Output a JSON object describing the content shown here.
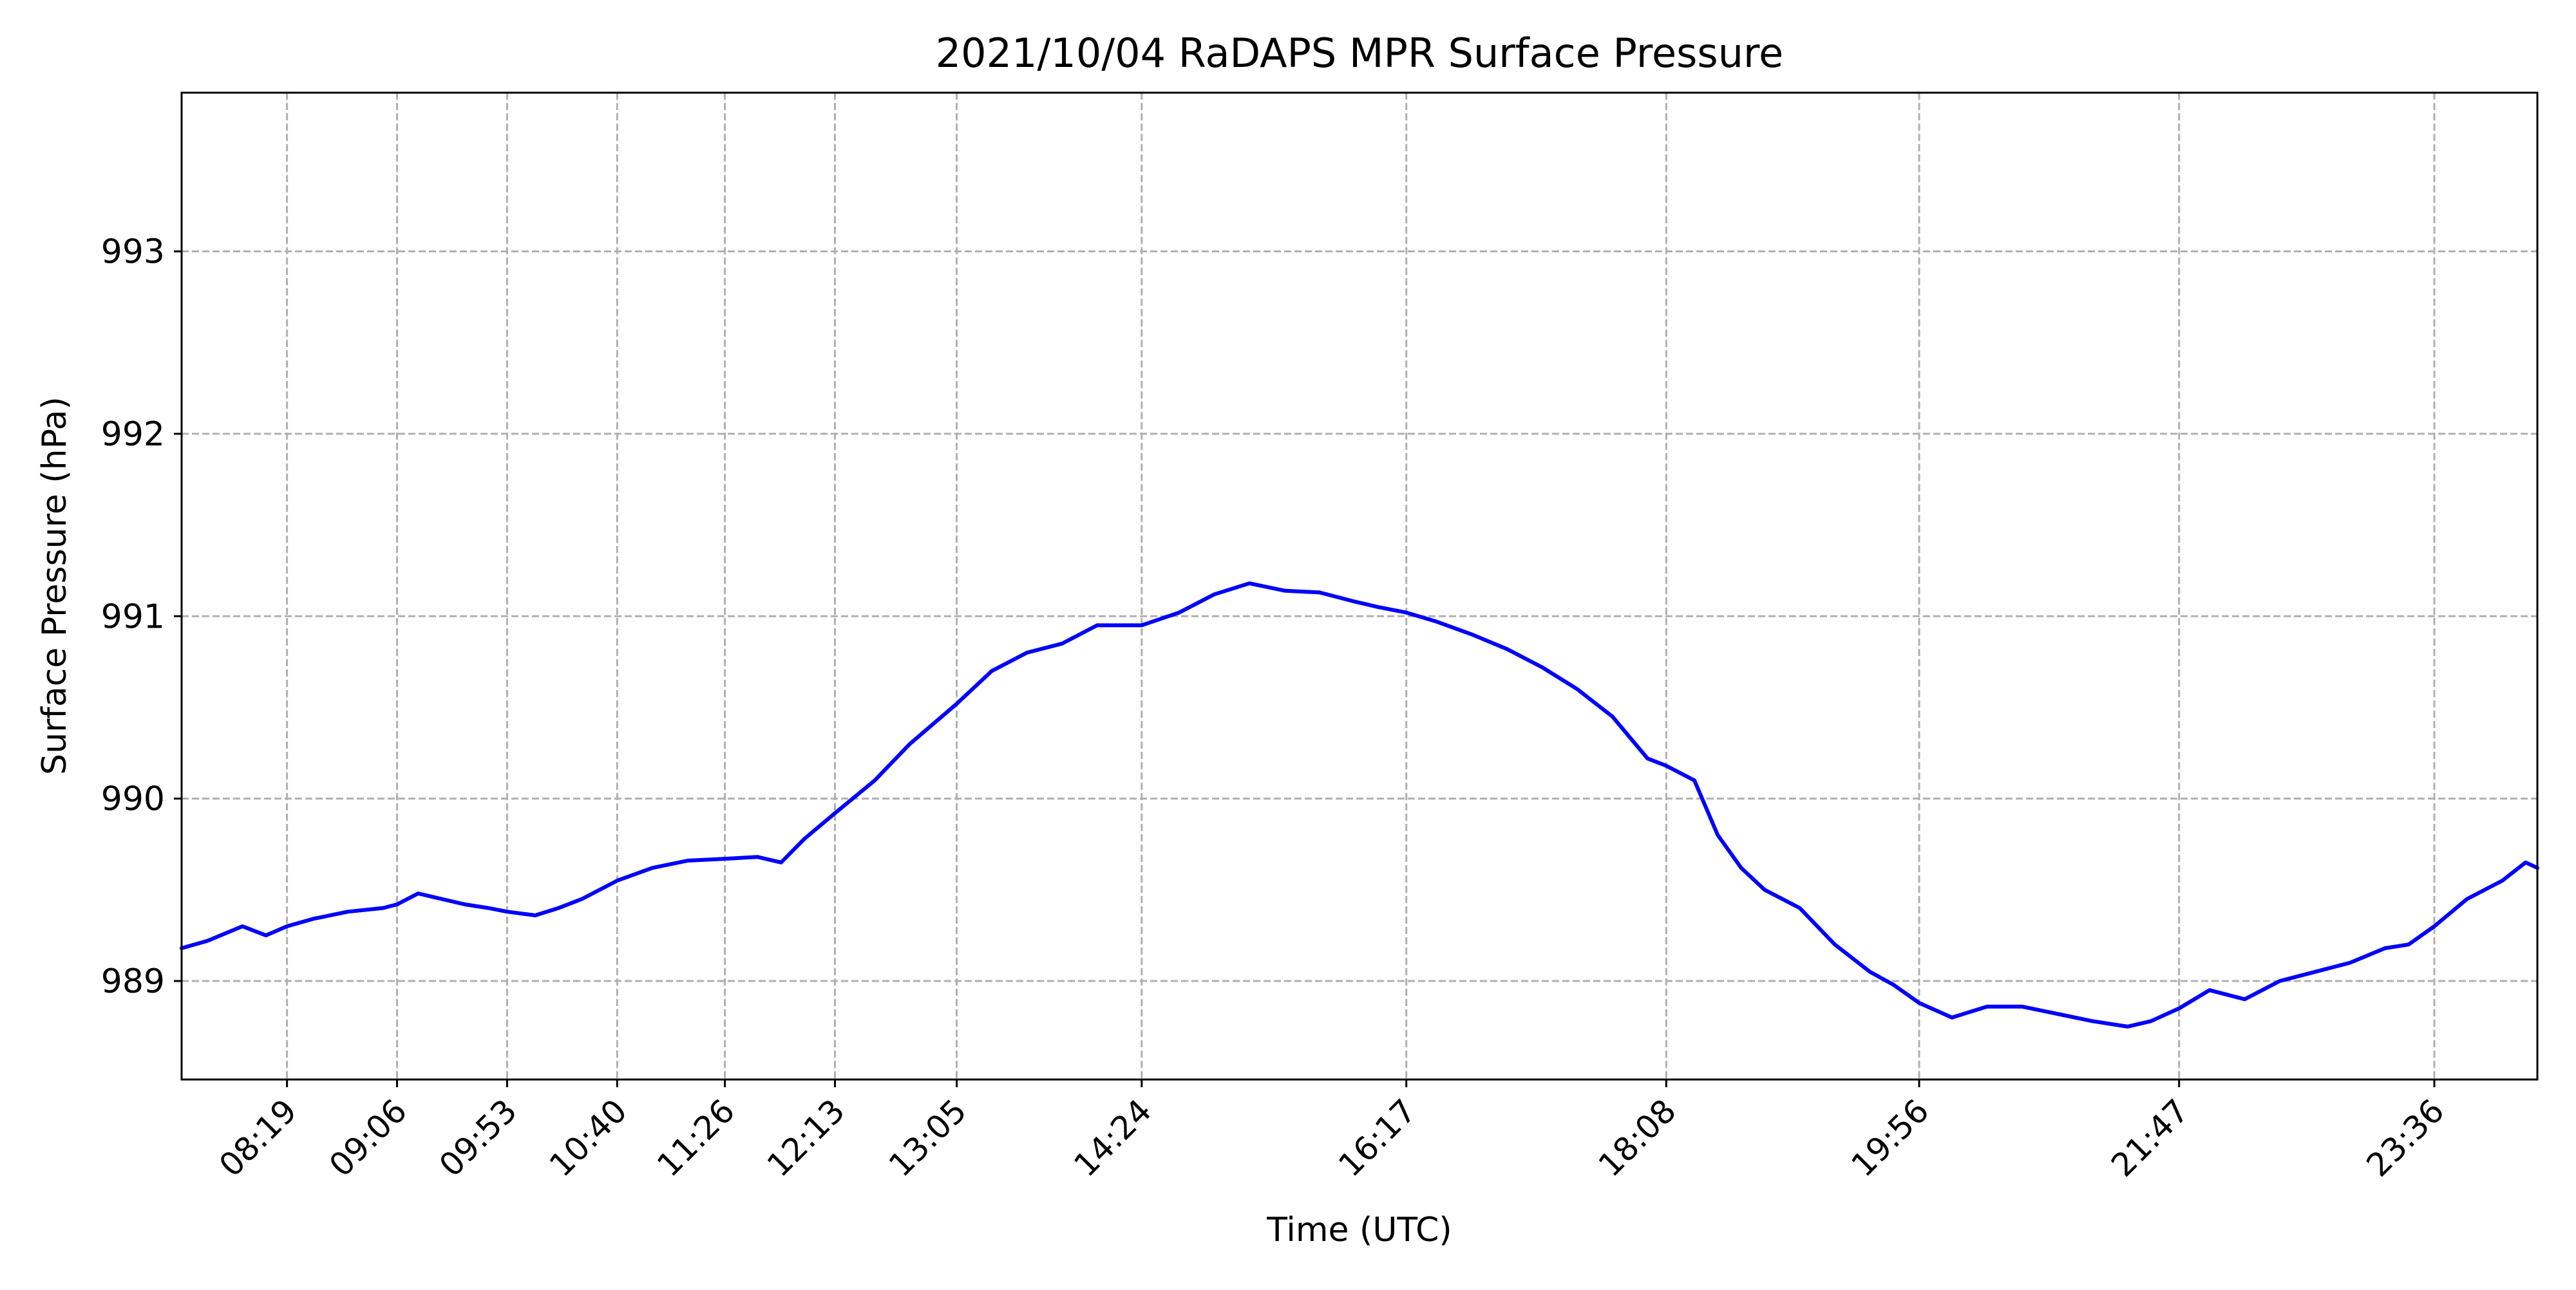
{
  "chart_data": {
    "type": "line",
    "title": "2021/10/04 RaDAPS MPR Surface Pressure",
    "xlabel": "Time (UTC)",
    "ylabel": "Surface Pressure (hPa)",
    "x_unit": "time of day (UTC)",
    "xlim": [
      "07:34",
      "24:20"
    ],
    "ylim": [
      988.46,
      993.87
    ],
    "grid": true,
    "legend": "none",
    "line_color": "#0000ff",
    "grid_color": "#b0b0b0",
    "x_ticks": [
      "08:19",
      "09:06",
      "09:53",
      "10:40",
      "11:26",
      "12:13",
      "13:05",
      "14:24",
      "16:17",
      "18:08",
      "19:56",
      "21:47",
      "23:36"
    ],
    "y_ticks": [
      989,
      990,
      991,
      992,
      993
    ],
    "series": [
      {
        "x": [
          "07:34",
          "07:45",
          "08:00",
          "08:10",
          "08:19",
          "08:30",
          "08:45",
          "09:00",
          "09:06",
          "09:15",
          "09:25",
          "09:35",
          "09:45",
          "09:53",
          "10:05",
          "10:15",
          "10:25",
          "10:40",
          "10:55",
          "11:10",
          "11:26",
          "11:40",
          "11:50",
          "12:00",
          "12:13",
          "12:30",
          "12:45",
          "13:05",
          "13:20",
          "13:35",
          "13:50",
          "14:05",
          "14:24",
          "14:40",
          "14:55",
          "15:10",
          "15:25",
          "15:40",
          "15:55",
          "16:05",
          "16:17",
          "16:30",
          "16:45",
          "17:00",
          "17:15",
          "17:30",
          "17:45",
          "18:00",
          "18:08",
          "18:20",
          "18:30",
          "18:40",
          "18:50",
          "19:05",
          "19:20",
          "19:35",
          "19:45",
          "19:56",
          "20:10",
          "20:25",
          "20:40",
          "20:55",
          "21:10",
          "21:25",
          "21:35",
          "21:47",
          "22:00",
          "22:15",
          "22:30",
          "22:45",
          "23:00",
          "23:15",
          "23:25",
          "23:36",
          "23:50",
          "24:05",
          "24:15",
          "24:20"
        ],
        "y": [
          989.18,
          989.22,
          989.3,
          989.25,
          989.3,
          989.34,
          989.38,
          989.4,
          989.42,
          989.48,
          989.45,
          989.42,
          989.4,
          989.38,
          989.36,
          989.4,
          989.45,
          989.55,
          989.62,
          989.66,
          989.67,
          989.68,
          989.65,
          989.78,
          989.92,
          990.1,
          990.3,
          990.52,
          990.7,
          990.8,
          990.85,
          990.95,
          990.95,
          991.02,
          991.12,
          991.18,
          991.14,
          991.13,
          991.08,
          991.05,
          991.02,
          990.97,
          990.9,
          990.82,
          990.72,
          990.6,
          990.45,
          990.22,
          990.18,
          990.1,
          989.8,
          989.62,
          989.5,
          989.4,
          989.2,
          989.05,
          988.98,
          988.88,
          988.8,
          988.86,
          988.86,
          988.82,
          988.78,
          988.75,
          988.78,
          988.85,
          988.95,
          988.9,
          989.0,
          989.05,
          989.1,
          989.18,
          989.2,
          989.3,
          989.45,
          989.55,
          989.65,
          989.62
        ]
      }
    ]
  }
}
